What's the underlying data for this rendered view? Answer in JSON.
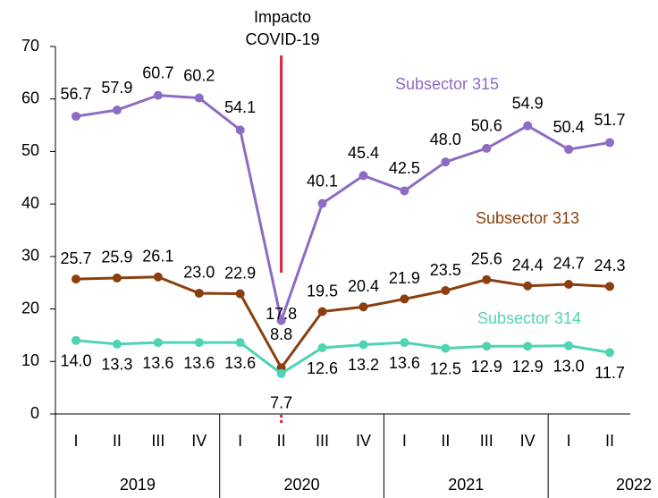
{
  "chart_data": {
    "type": "line",
    "annotation": [
      "Impacto",
      "COVID-19"
    ],
    "annotation_color": "#e0203a",
    "categories": [
      "I",
      "II",
      "III",
      "IV",
      "I",
      "II",
      "III",
      "IV",
      "I",
      "II",
      "III",
      "IV",
      "I",
      "II"
    ],
    "groups": [
      {
        "name": "2019",
        "size": 4
      },
      {
        "name": "2020",
        "size": 4
      },
      {
        "name": "2021",
        "size": 4
      },
      {
        "name": "2022",
        "size": 2
      }
    ],
    "series": [
      {
        "name": "Subsector 315",
        "color": "#8e6bc4",
        "values": [
          56.7,
          57.9,
          60.7,
          60.2,
          54.1,
          17.8,
          40.1,
          45.4,
          42.5,
          48.0,
          50.6,
          54.9,
          50.4,
          51.7
        ],
        "value_labels": [
          "56.7",
          "57.9",
          "60.7",
          "60.2",
          "54.1",
          "17.8",
          "40.1",
          "45.4",
          "42.5",
          "48.0",
          "50.6",
          "54.9",
          "50.4",
          "51.7"
        ]
      },
      {
        "name": "Subsector 313",
        "color": "#8b3f0f",
        "values": [
          25.7,
          25.9,
          26.1,
          23.0,
          22.9,
          8.8,
          19.5,
          20.4,
          21.9,
          23.5,
          25.6,
          24.4,
          24.7,
          24.3
        ],
        "value_labels": [
          "25.7",
          "25.9",
          "26.1",
          "23.0",
          "22.9",
          "8.8",
          "19.5",
          "20.4",
          "21.9",
          "23.5",
          "25.6",
          "24.4",
          "24.7",
          "24.3"
        ]
      },
      {
        "name": "Subsector 314",
        "color": "#4fd3b2",
        "values": [
          14.0,
          13.3,
          13.6,
          13.6,
          13.6,
          7.7,
          12.6,
          13.2,
          13.6,
          12.5,
          12.9,
          12.9,
          13.0,
          11.7
        ],
        "value_labels": [
          "14.0",
          "13.3",
          "13.6",
          "13.6",
          "13.6",
          "7.7",
          "12.6",
          "13.2",
          "13.6",
          "12.5",
          "12.9",
          "12.9",
          "13.0",
          "11.7"
        ]
      }
    ],
    "ylim": [
      0,
      70
    ],
    "yticks": [
      0,
      10,
      20,
      30,
      40,
      50,
      60,
      70
    ],
    "grid": false
  }
}
